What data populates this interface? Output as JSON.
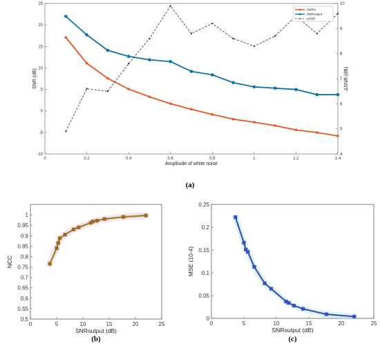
{
  "chart_data": [
    {
      "id": "a",
      "type": "line",
      "caption": "(a)",
      "title": "",
      "xlabel": "Amplitude of white noise",
      "ylabel": "SNR (dB)",
      "y2label": "ΔSNR (dB)",
      "xlim": [
        0,
        1.4
      ],
      "ylim": [
        -10,
        25
      ],
      "y2lim": [
        4,
        10
      ],
      "grid": false,
      "legend_position": "top-right",
      "x": [
        0.1,
        0.2,
        0.3,
        0.4,
        0.5,
        0.6,
        0.7,
        0.8,
        0.9,
        1.0,
        1.1,
        1.2,
        1.3,
        1.4
      ],
      "x_ticks": [
        "0",
        "0.2",
        "0.4",
        "0.6",
        "0.8",
        "1",
        "1.2",
        "1.4"
      ],
      "y_ticks": [
        "-10",
        "-5",
        "0",
        "5",
        "10",
        "15",
        "20",
        "25"
      ],
      "y2_ticks": [
        "4",
        "5",
        "6",
        "7",
        "8",
        "9",
        "10"
      ],
      "series": [
        {
          "name": "SNRin",
          "axis": "left",
          "color": "#e8531f",
          "values": [
            17.1,
            11.1,
            7.6,
            5.1,
            3.3,
            1.7,
            0.4,
            -0.8,
            -1.9,
            -2.6,
            -3.4,
            -4.4,
            -5.0,
            -5.8
          ]
        },
        {
          "name": "SNRoutput",
          "axis": "left",
          "color": "#0e72a8",
          "values": [
            22.0,
            17.7,
            14.1,
            12.7,
            11.9,
            11.5,
            9.2,
            8.4,
            6.6,
            5.6,
            5.3,
            5.0,
            3.8,
            3.8
          ]
        },
        {
          "name": "ΔSNR",
          "axis": "right",
          "color": "#222222",
          "values": [
            4.9,
            6.6,
            6.5,
            7.6,
            8.6,
            9.9,
            8.8,
            9.2,
            8.6,
            8.3,
            8.7,
            9.5,
            8.8,
            9.6
          ]
        }
      ]
    },
    {
      "id": "b",
      "type": "line",
      "caption": "(b)",
      "title": "",
      "xlabel": "SNRoutput (dB)",
      "ylabel": "NCC",
      "xlim": [
        0,
        25
      ],
      "ylim": [
        0.5,
        1.05
      ],
      "grid": false,
      "x_ticks": [
        "0",
        "5",
        "10",
        "15",
        "20",
        "25"
      ],
      "y_ticks": [
        "0.5",
        "0.55",
        "0.6",
        "0.65",
        "0.7",
        "0.75",
        "0.8",
        "0.85",
        "0.9",
        "0.95",
        "1"
      ],
      "series": [
        {
          "name": "",
          "color": "#8a8a18",
          "x": [
            3.7,
            5.0,
            5.3,
            5.6,
            6.6,
            8.2,
            9.2,
            11.5,
            11.9,
            12.7,
            14.1,
            17.7,
            22.0
          ],
          "values": [
            0.765,
            0.84,
            0.865,
            0.888,
            0.905,
            0.93,
            0.94,
            0.962,
            0.968,
            0.972,
            0.98,
            0.99,
            0.997
          ]
        }
      ]
    },
    {
      "id": "c",
      "type": "line",
      "caption": "(c)",
      "title": "",
      "xlabel": "SNRoutput (dB)",
      "ylabel": "MSE (10-4)",
      "xlim": [
        0,
        25
      ],
      "ylim": [
        0,
        0.25
      ],
      "grid": false,
      "x_ticks": [
        "0",
        "5",
        "10",
        "15",
        "20",
        "25"
      ],
      "y_ticks": [
        "0",
        "0.05",
        "0.1",
        "0.15",
        "0.2",
        "0.25"
      ],
      "series": [
        {
          "name": "",
          "color": "#3a50b8",
          "x": [
            3.7,
            5.0,
            5.3,
            5.6,
            6.6,
            8.2,
            9.2,
            11.5,
            11.9,
            12.7,
            14.1,
            17.7,
            22.0
          ],
          "values": [
            0.222,
            0.166,
            0.151,
            0.146,
            0.113,
            0.077,
            0.065,
            0.037,
            0.034,
            0.028,
            0.021,
            0.009,
            0.004
          ]
        }
      ]
    }
  ]
}
